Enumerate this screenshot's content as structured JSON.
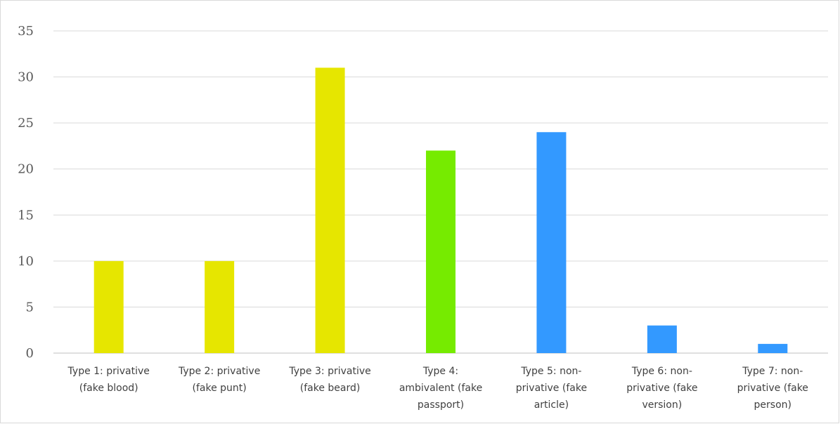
{
  "chart_data": {
    "type": "bar",
    "title": "",
    "xlabel": "",
    "ylabel": "",
    "ylim": [
      0,
      35
    ],
    "yticks": [
      0,
      5,
      10,
      15,
      20,
      25,
      30,
      35
    ],
    "grid": true,
    "legend": "none",
    "categories": [
      [
        "Type 1: privative",
        "(fake blood)"
      ],
      [
        "Type 2: privative",
        "(fake punt)"
      ],
      [
        "Type 3: privative",
        "(fake beard)"
      ],
      [
        "Type 4:",
        "ambivalent (fake",
        "passport)"
      ],
      [
        "Type 5: non-",
        "privative (fake",
        "article)"
      ],
      [
        "Type 6: non-",
        "privative (fake",
        "version)"
      ],
      [
        "Type 7: non-",
        "privative  (fake",
        "person)"
      ]
    ],
    "values": [
      10,
      10,
      31,
      22,
      24,
      3,
      1
    ],
    "colors": [
      "#e6e600",
      "#e6e600",
      "#e6e600",
      "#76eb00",
      "#3399ff",
      "#3399ff",
      "#3399ff"
    ],
    "gridline_color": "#d9d9d9",
    "axis_color": "#bfbfbf"
  }
}
